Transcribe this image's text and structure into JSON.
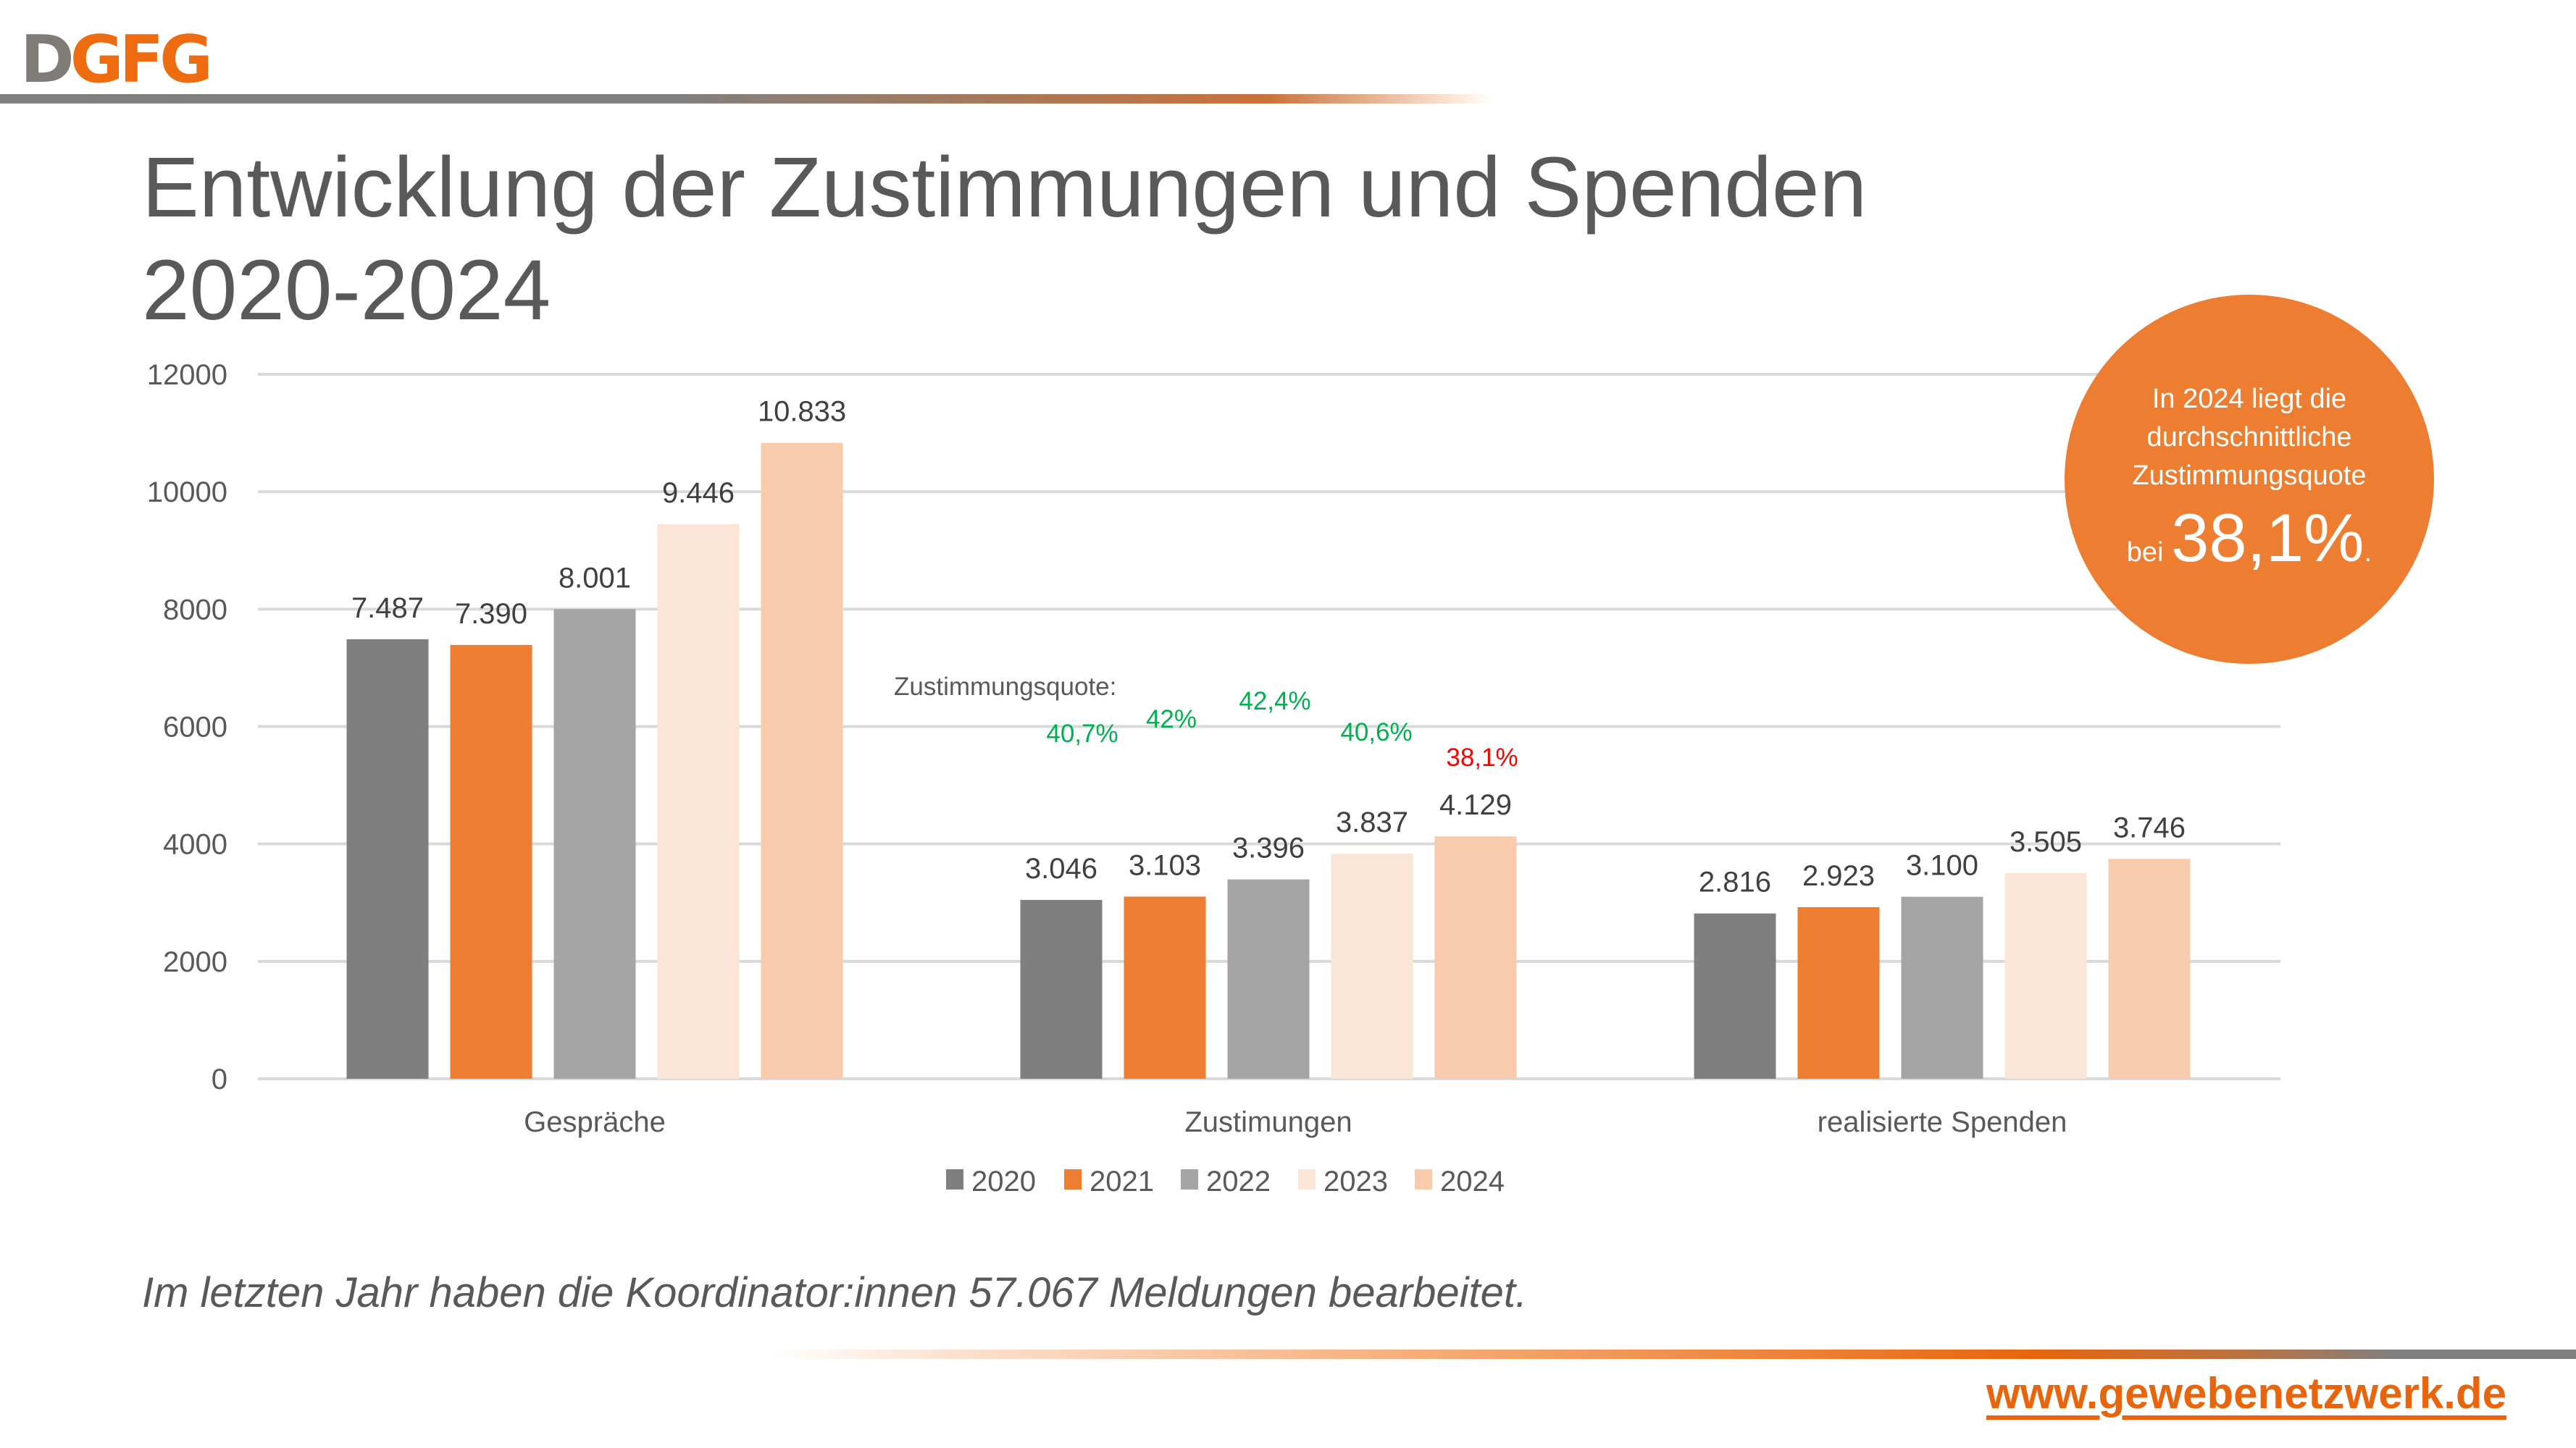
{
  "logo": {
    "part1": "D",
    "part2": "GFG"
  },
  "title": {
    "line1": "Entwicklung der Zustimmungen und Spenden",
    "line2": "2020-2024"
  },
  "callout": {
    "text_lines": [
      "In 2024 liegt die",
      "durchschnittliche",
      "Zustimmungsquote"
    ],
    "prefix": "bei",
    "value": "38,1%",
    "suffix": ".",
    "color": "#ed7d31"
  },
  "footnote": "Im letzten Jahr haben die Koordinator:innen 57.067 Meldungen bearbeitet.",
  "url": "www.gewebenetzwerk.de",
  "chart_data": {
    "type": "bar",
    "title": "",
    "xlabel": "",
    "ylabel": "",
    "ylim": [
      0,
      12000
    ],
    "yticks": [
      "0",
      "2000",
      "4000",
      "6000",
      "8000",
      "10000",
      "12000"
    ],
    "grid": true,
    "legend_position": "bottom",
    "categories": [
      "Gespräche",
      "Zustimungen",
      "realisierte Spenden"
    ],
    "series": [
      {
        "name": "2020",
        "color": "#7f7f7f",
        "values": [
          7487,
          3046,
          2816
        ],
        "labels": [
          "7.487",
          "3.046",
          "2.816"
        ]
      },
      {
        "name": "2021",
        "color": "#ed7d31",
        "values": [
          7390,
          3103,
          2923
        ],
        "labels": [
          "7.390",
          "3.103",
          "2.923"
        ]
      },
      {
        "name": "2022",
        "color": "#a5a5a5",
        "values": [
          8001,
          3396,
          3100
        ],
        "labels": [
          "8.001",
          "3.396",
          "3.100"
        ]
      },
      {
        "name": "2023",
        "color": "#fbe5d6",
        "values": [
          9446,
          3837,
          3505
        ],
        "labels": [
          "9.446",
          "3.837",
          "3.505"
        ]
      },
      {
        "name": "2024",
        "color": "#f8cbad",
        "values": [
          10833,
          4129,
          3746
        ],
        "labels": [
          "10.833",
          "4.129",
          "3.746"
        ]
      }
    ],
    "annotations": {
      "label": "Zustimmungsquote:",
      "rates": [
        {
          "year": "2020",
          "text": "40,7%",
          "color": "#00b050"
        },
        {
          "year": "2021",
          "text": "42%",
          "color": "#00b050"
        },
        {
          "year": "2022",
          "text": "42,4%",
          "color": "#00b050"
        },
        {
          "year": "2023",
          "text": "40,6%",
          "color": "#00b050"
        },
        {
          "year": "2024",
          "text": "38,1%",
          "color": "#ff0000"
        }
      ]
    }
  }
}
